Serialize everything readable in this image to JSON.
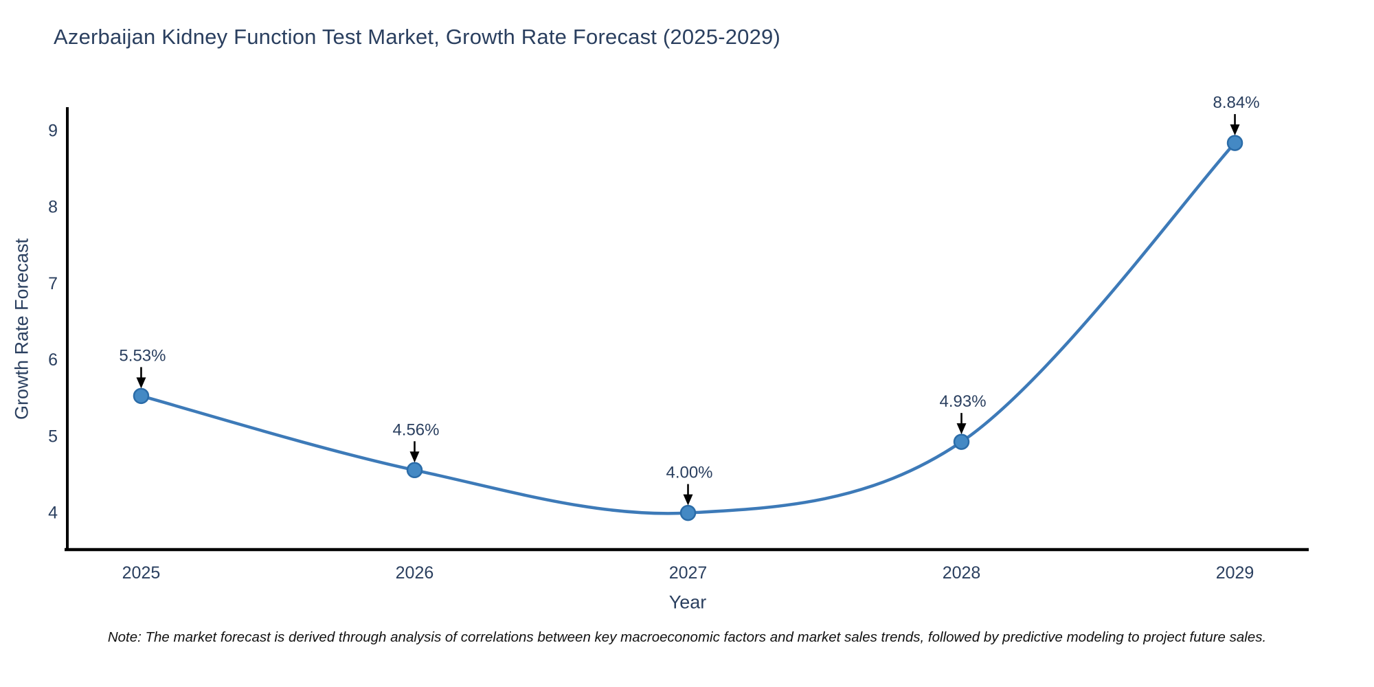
{
  "title": "Azerbaijan Kidney Function Test Market, Growth Rate Forecast (2025-2029)",
  "note": "Note: The market forecast is derived through analysis of correlations between key macroeconomic factors and market sales trends, followed by predictive modeling to project future sales.",
  "chart_data": {
    "type": "line",
    "title": "Azerbaijan Kidney Function Test Market, Growth Rate Forecast (2025-2029)",
    "xlabel": "Year",
    "ylabel": "Growth Rate Forecast",
    "x": [
      2025,
      2026,
      2027,
      2028,
      2029
    ],
    "values": [
      5.53,
      4.56,
      4.0,
      4.93,
      8.84
    ],
    "point_labels": [
      "5.53%",
      "4.56%",
      "4.00%",
      "4.93%",
      "8.84%"
    ],
    "xticks": [
      "2025",
      "2026",
      "2027",
      "2028",
      "2029"
    ],
    "yticks": [
      4,
      5,
      6,
      7,
      8,
      9
    ],
    "xlim": [
      2024.73,
      2029.27
    ],
    "ylim": [
      3.52,
      9.29
    ],
    "grid": false,
    "legend": "none",
    "smooth": true,
    "line_color": "#3d7ab8",
    "marker_fill": "#4489c4",
    "marker_edge": "#2b6ca8",
    "axis_color": "#000000",
    "tick_color": "#2a3f5f",
    "annotation_color": "#2a3f5f",
    "arrow_color": "#000000"
  }
}
